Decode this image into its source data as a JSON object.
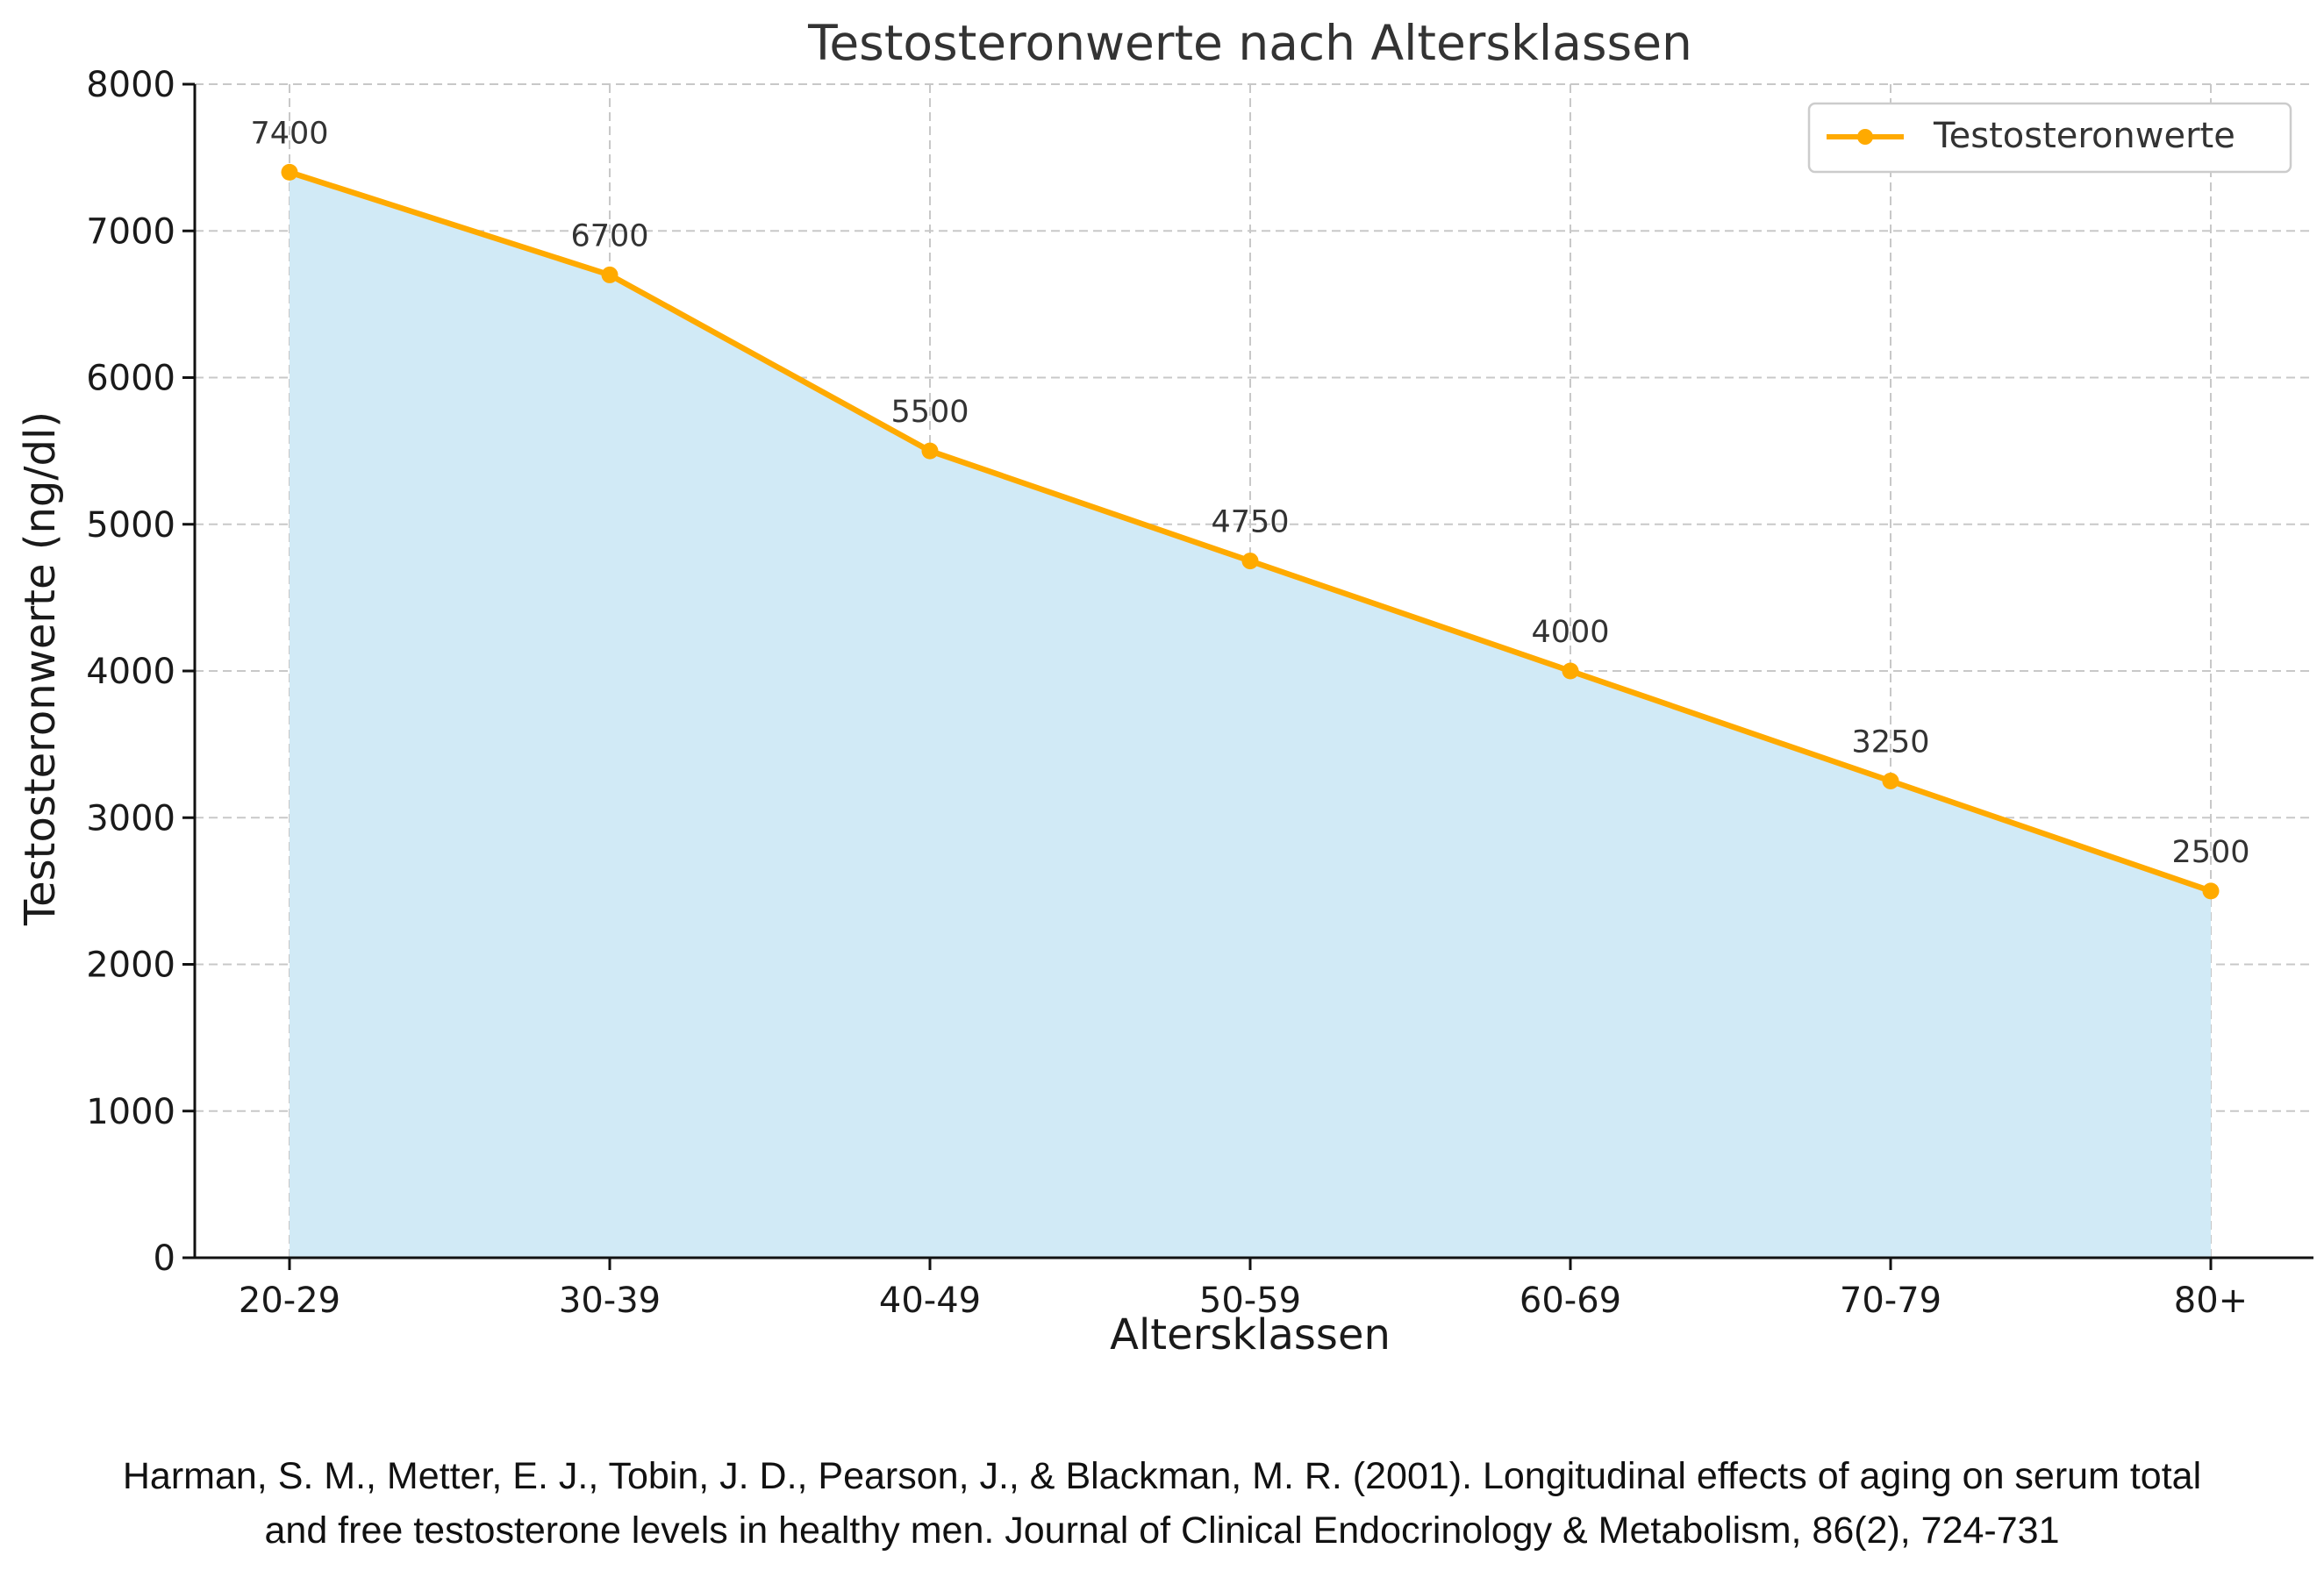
{
  "chart_data": {
    "type": "area",
    "title": "Testosteronwerte nach Altersklassen",
    "xlabel": "Altersklassen",
    "ylabel": "Testosteronwerte (ng/dl)",
    "categories": [
      "20-29",
      "30-39",
      "40-49",
      "50-59",
      "60-69",
      "70-79",
      "80+"
    ],
    "series": [
      {
        "name": "Testosteronwerte",
        "values": [
          7400,
          6700,
          5500,
          4750,
          4000,
          3250,
          2500
        ],
        "line_color": "#FFAA00",
        "fill_color": "#D1EAF6"
      }
    ],
    "data_labels": [
      "7400",
      "6700",
      "5500",
      "4750",
      "4000",
      "3250",
      "2500"
    ],
    "ylim": [
      0,
      8000
    ],
    "yticks": [
      0,
      1000,
      2000,
      3000,
      4000,
      5000,
      6000,
      7000,
      8000
    ],
    "ytick_labels": [
      "0",
      "1000",
      "2000",
      "3000",
      "4000",
      "5000",
      "6000",
      "7000",
      "8000"
    ],
    "grid": true,
    "legend": {
      "placement": "top-right",
      "label": "Testosteronwerte"
    }
  },
  "citation": {
    "line1": "Harman, S. M., Metter, E. J., Tobin, J. D., Pearson, J., & Blackman, M. R. (2001). Longitudinal effects of aging on serum total",
    "line2": "and free testosterone levels in healthy men. Journal of Clinical Endocrinology & Metabolism, 86(2), 724-731"
  }
}
